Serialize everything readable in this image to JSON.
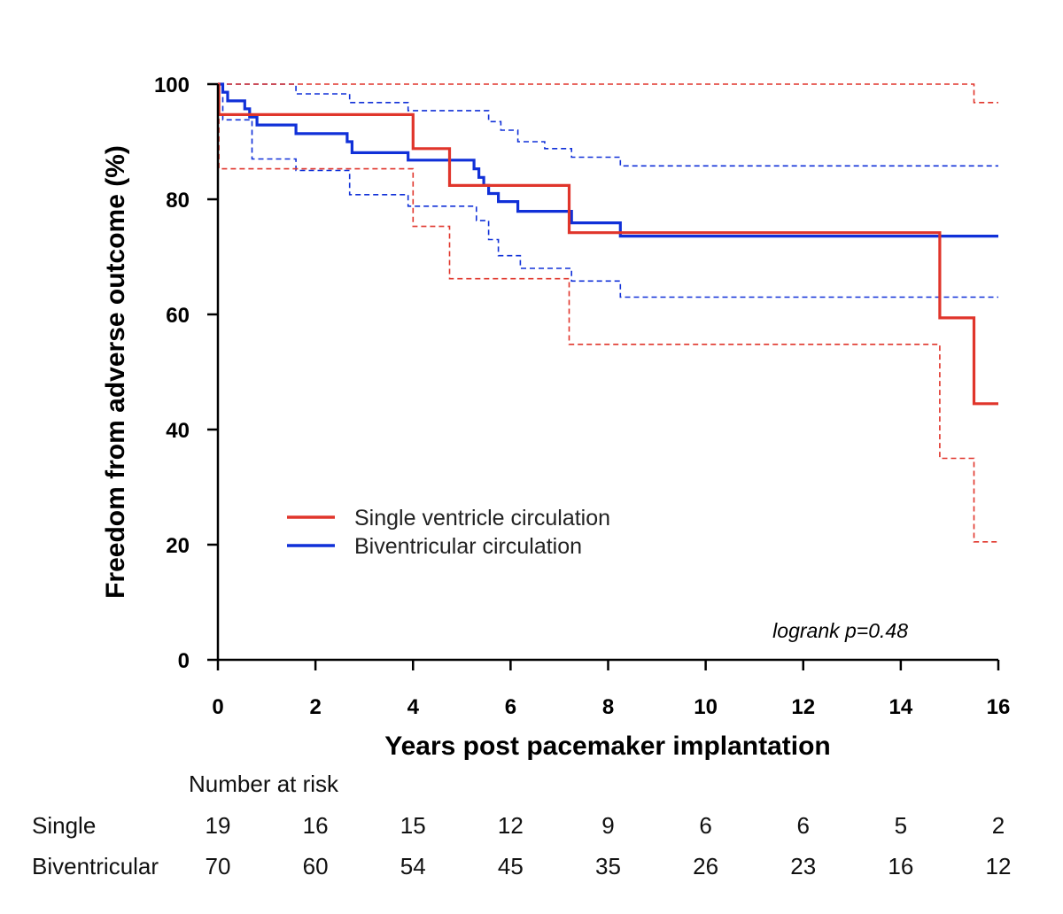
{
  "chart_data": {
    "type": "line",
    "subtype": "kaplan-meier",
    "xlabel": "Years post pacemaker implantation",
    "ylabel": "Freedom from adverse outcome (%)",
    "xlim": [
      0,
      16
    ],
    "ylim": [
      0,
      100
    ],
    "xticks": [
      0,
      2,
      4,
      6,
      8,
      10,
      12,
      14,
      16
    ],
    "yticks": [
      0,
      20,
      40,
      60,
      80,
      100
    ],
    "grid": false,
    "legend_position": "lower-left",
    "annotation": "logrank p=0.48",
    "series": [
      {
        "name": "Single ventricle circulation",
        "color": "#e0352b",
        "estimate": [
          [
            0,
            100
          ],
          [
            0.02,
            94.7
          ],
          [
            4.0,
            88.8
          ],
          [
            4.75,
            82.4
          ],
          [
            7.2,
            74.2
          ],
          [
            14.8,
            59.4
          ],
          [
            15.5,
            44.5
          ],
          [
            16,
            44.5
          ]
        ],
        "ci_upper": [
          [
            0,
            100
          ],
          [
            15.5,
            100
          ],
          [
            15.5,
            96.8
          ],
          [
            16,
            96.8
          ]
        ],
        "ci_lower": [
          [
            0,
            100
          ],
          [
            0.02,
            85.3
          ],
          [
            4.0,
            75.3
          ],
          [
            4.75,
            66.2
          ],
          [
            7.2,
            54.8
          ],
          [
            14.8,
            35.0
          ],
          [
            15.5,
            20.5
          ],
          [
            16,
            20.5
          ]
        ]
      },
      {
        "name": "Biventricular circulation",
        "color": "#1030d8",
        "estimate": [
          [
            0,
            100
          ],
          [
            0.1,
            98.6
          ],
          [
            0.2,
            97.1
          ],
          [
            0.55,
            95.7
          ],
          [
            0.65,
            94.3
          ],
          [
            0.8,
            92.9
          ],
          [
            1.6,
            91.4
          ],
          [
            2.65,
            90.0
          ],
          [
            2.75,
            88.1
          ],
          [
            3.9,
            86.8
          ],
          [
            5.25,
            85.3
          ],
          [
            5.35,
            83.8
          ],
          [
            5.45,
            82.4
          ],
          [
            5.55,
            81.0
          ],
          [
            5.75,
            79.6
          ],
          [
            6.15,
            77.9
          ],
          [
            7.25,
            75.9
          ],
          [
            8.25,
            73.6
          ],
          [
            16,
            73.6
          ]
        ],
        "ci_upper": [
          [
            0,
            100
          ],
          [
            0.85,
            100
          ],
          [
            1.6,
            98.3
          ],
          [
            2.7,
            96.8
          ],
          [
            3.9,
            95.4
          ],
          [
            5.55,
            93.5
          ],
          [
            5.8,
            92.0
          ],
          [
            6.15,
            90.0
          ],
          [
            6.7,
            88.8
          ],
          [
            7.25,
            87.3
          ],
          [
            8.25,
            85.8
          ],
          [
            16,
            85.8
          ]
        ],
        "ci_lower": [
          [
            0,
            100
          ],
          [
            0.1,
            93.8
          ],
          [
            0.7,
            87.0
          ],
          [
            1.6,
            85.0
          ],
          [
            2.7,
            80.8
          ],
          [
            3.9,
            78.8
          ],
          [
            5.3,
            76.3
          ],
          [
            5.55,
            73.0
          ],
          [
            5.75,
            70.2
          ],
          [
            6.2,
            68.0
          ],
          [
            7.25,
            65.8
          ],
          [
            8.25,
            63.0
          ],
          [
            16,
            63.0
          ]
        ]
      }
    ]
  },
  "risk_table": {
    "title": "Number at risk",
    "times": [
      0,
      2,
      4,
      6,
      8,
      10,
      12,
      14,
      16
    ],
    "rows": [
      {
        "label": "Single",
        "counts": [
          "19",
          "16",
          "15",
          "12",
          "9",
          "6",
          "6",
          "5",
          "2"
        ]
      },
      {
        "label": "Biventricular",
        "counts": [
          "70",
          "60",
          "54",
          "45",
          "35",
          "26",
          "23",
          "16",
          "12"
        ]
      }
    ]
  }
}
